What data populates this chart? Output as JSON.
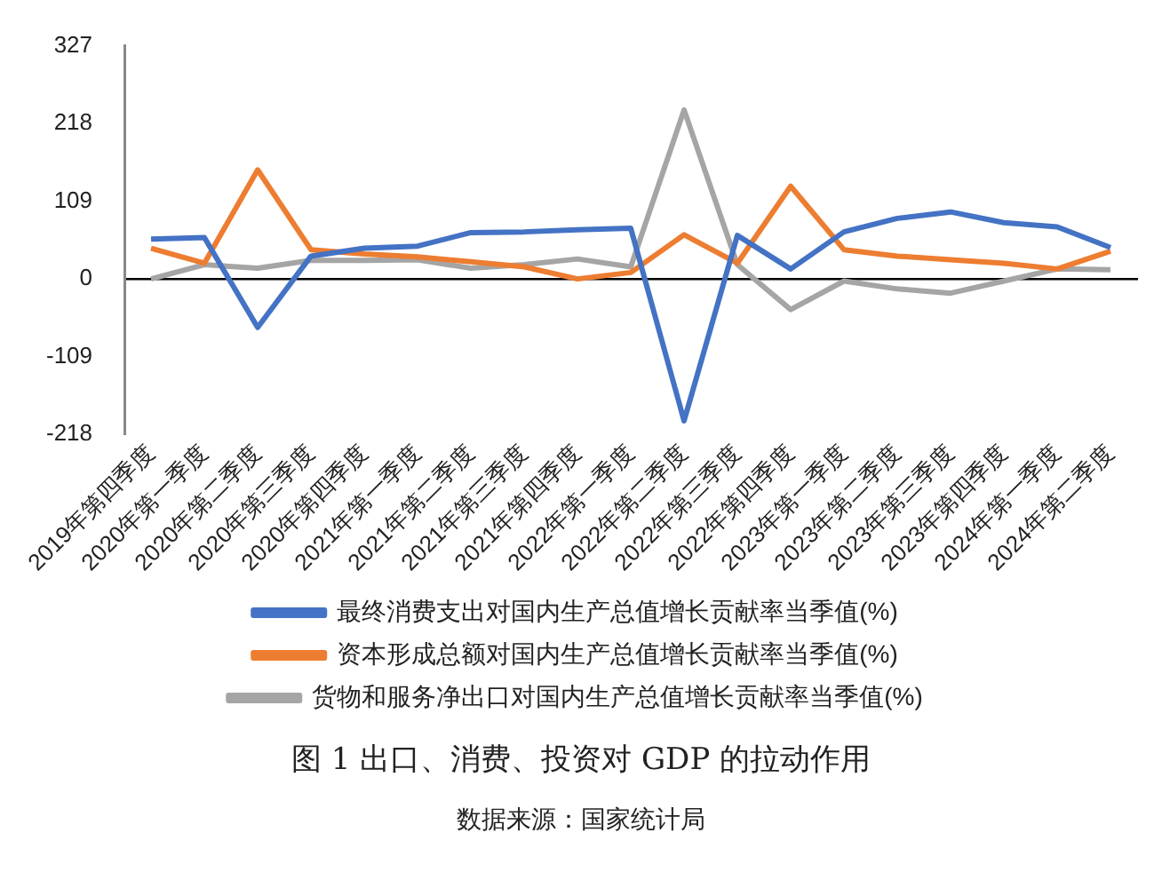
{
  "chart_data": {
    "type": "line",
    "categories": [
      "2019年第四季度",
      "2020年第一季度",
      "2020年第二季度",
      "2020年第三季度",
      "2020年第四季度",
      "2021年第一季度",
      "2021年第二季度",
      "2021年第三季度",
      "2021年第四季度",
      "2022年第一季度",
      "2022年第二季度",
      "2022年第三季度",
      "2022年第四季度",
      "2023年第一季度",
      "2023年第二季度",
      "2023年第三季度",
      "2023年第四季度",
      "2024年第一季度",
      "2024年第二季度"
    ],
    "series": [
      {
        "name": "最终消费支出对国内生产总值增长贡献率当季值(%)",
        "color": "#4472c4",
        "values": [
          56,
          58,
          -68,
          32,
          43,
          46,
          65,
          66,
          69,
          71,
          -199,
          61,
          14,
          66,
          85,
          94,
          79,
          73,
          44
        ]
      },
      {
        "name": "资本形成总额对国内生产总值增长贡献率当季值(%)",
        "color": "#ed7d31",
        "values": [
          43,
          22,
          153,
          41,
          35,
          31,
          24,
          17,
          0,
          9,
          62,
          22,
          130,
          41,
          32,
          27,
          22,
          14,
          39
        ]
      },
      {
        "name": "货物和服务净出口对国内生产总值增长贡献率当季值(%)",
        "color": "#a5a5a5",
        "values": [
          0,
          20,
          15,
          26,
          26,
          27,
          15,
          20,
          28,
          17,
          237,
          20,
          -43,
          -3,
          -14,
          -20,
          -3,
          14,
          13
        ]
      }
    ],
    "ylim": [
      -218,
      327
    ],
    "yticks": [
      -218,
      -109,
      0,
      109,
      218,
      327
    ],
    "legend": "bottom",
    "marker": "none",
    "line_style": "solid",
    "annotations": [
      "图 1 出口、消费、投资对 GDP 的拉动作用",
      "数据来源：国家统计局"
    ]
  }
}
